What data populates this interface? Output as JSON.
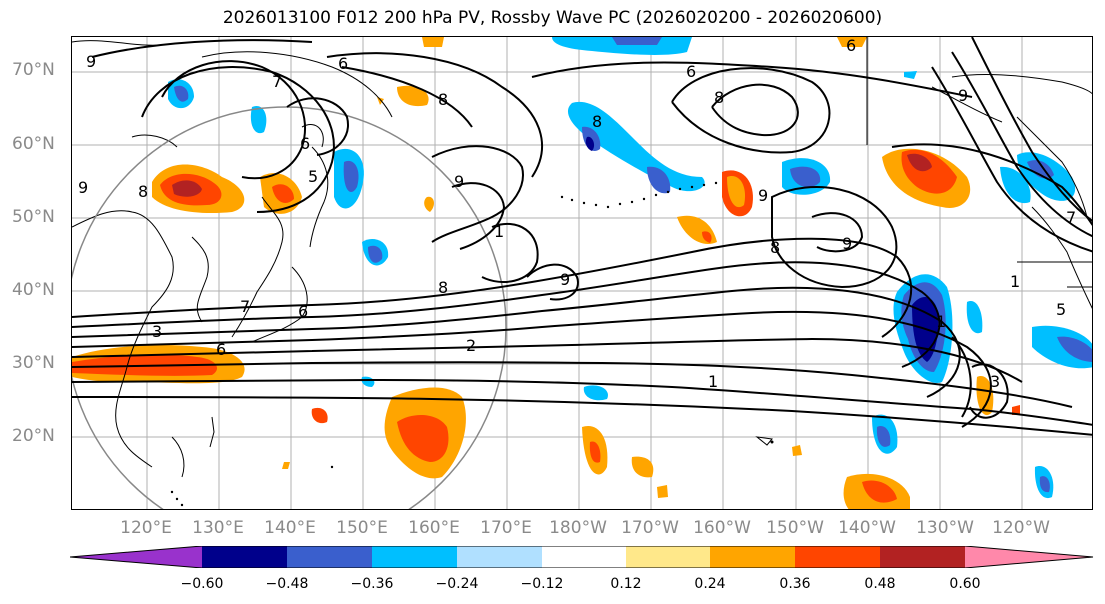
{
  "title": "2026013100 F012 200 hPa PV, Rossby Wave PC (2026020200 - 2026020600)",
  "lat_labels": [
    "70°N",
    "60°N",
    "50°N",
    "40°N",
    "30°N",
    "20°N"
  ],
  "lon_labels": [
    "120°E",
    "130°E",
    "140°E",
    "150°E",
    "160°E",
    "170°E",
    "180°W",
    "170°W",
    "160°W",
    "150°W",
    "140°W",
    "130°W",
    "120°W"
  ],
  "contour_labels": [
    "9",
    "6",
    "8",
    "7",
    "6",
    "5",
    "9",
    "8",
    "9",
    "8",
    "1",
    "9",
    "8",
    "6",
    "8",
    "9",
    "9",
    "8",
    "7",
    "6",
    "2",
    "1",
    "1",
    "3",
    "1",
    "6",
    "9",
    "7",
    "3",
    "6",
    "5"
  ],
  "colorbar": {
    "ticks": [
      "−0.60",
      "−0.48",
      "−0.36",
      "−0.24",
      "−0.12",
      "0.12",
      "0.24",
      "0.36",
      "0.48",
      "0.60"
    ],
    "colors": [
      "#9932cc",
      "#00008b",
      "#3a5fcd",
      "#00bfff",
      "#b0e0ff",
      "#ffffff",
      "#ffe88a",
      "#ffa500",
      "#ff4500",
      "#b22222",
      "#ff88aa"
    ]
  },
  "colors": {
    "coast": "#000000",
    "grid": "#b0b0b0",
    "contour": "#000000",
    "label_gray": "#8a8a8a"
  }
}
